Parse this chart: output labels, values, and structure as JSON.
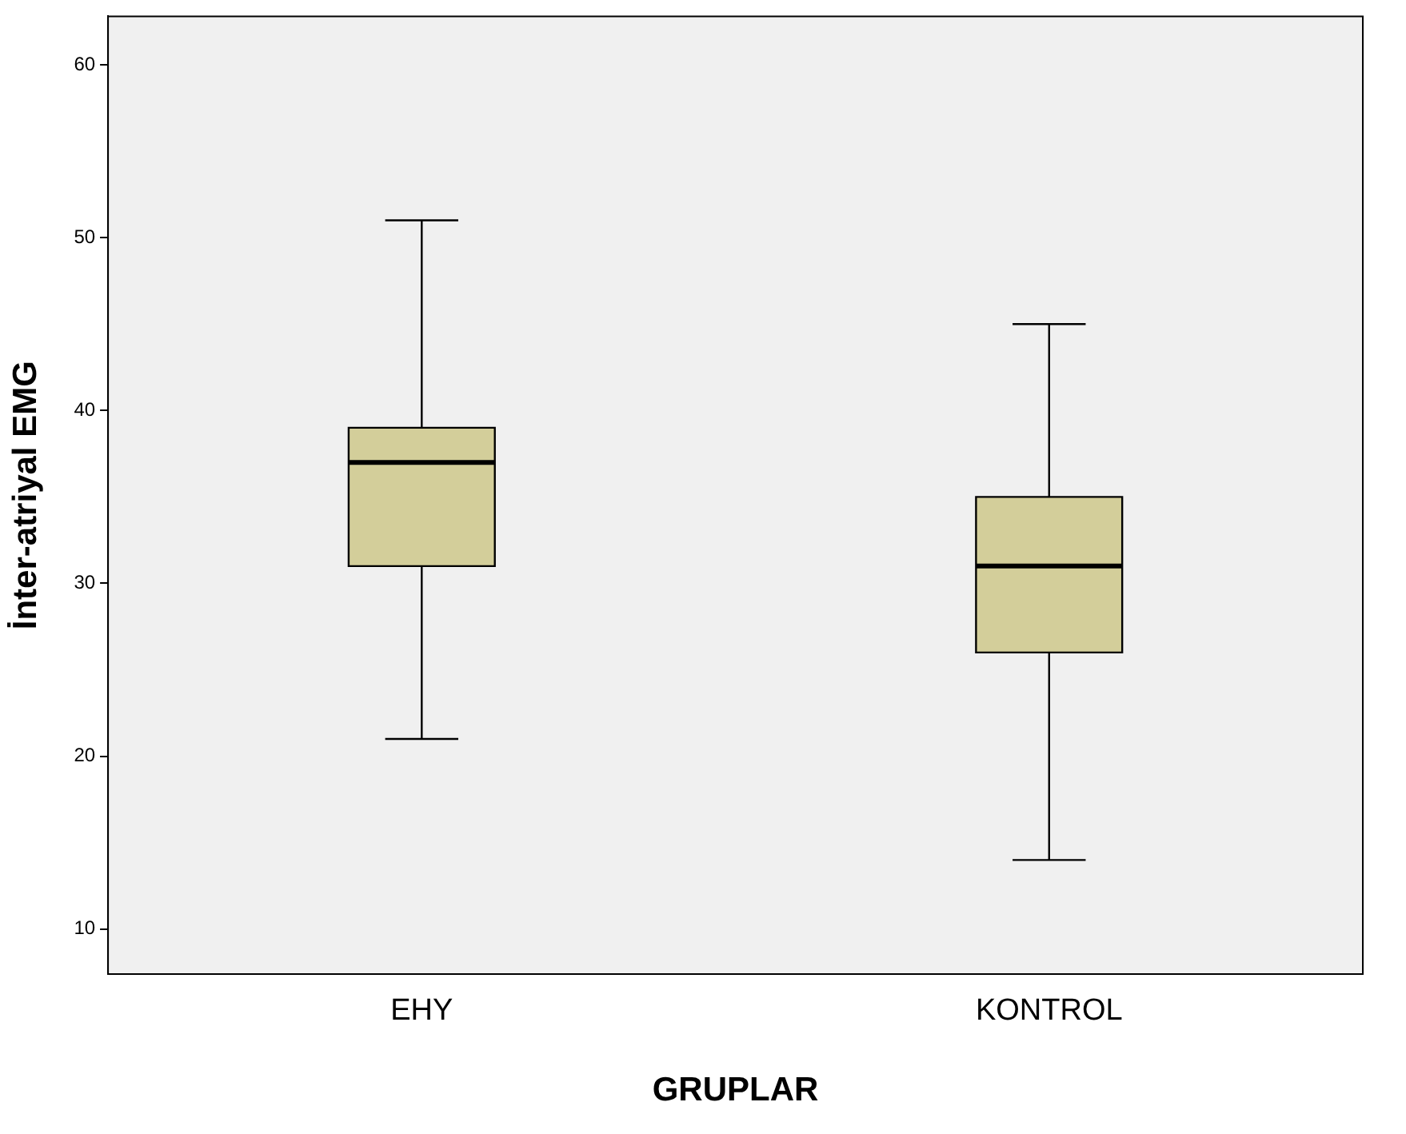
{
  "chart_data": {
    "type": "box",
    "xlabel": "GRUPLAR",
    "ylabel": "İnter-atriyal EMG",
    "categories": [
      "EHY",
      "KONTROL"
    ],
    "boxes": [
      {
        "low": 21,
        "q1": 31,
        "median": 37,
        "q3": 39,
        "high": 51
      },
      {
        "low": 14,
        "q1": 26,
        "median": 31,
        "q3": 35,
        "high": 45
      }
    ],
    "color": "#d3ce9a",
    "ylim": [
      7.4,
      62.8
    ],
    "yticks": [
      10,
      20,
      30,
      40,
      50,
      60
    ]
  }
}
